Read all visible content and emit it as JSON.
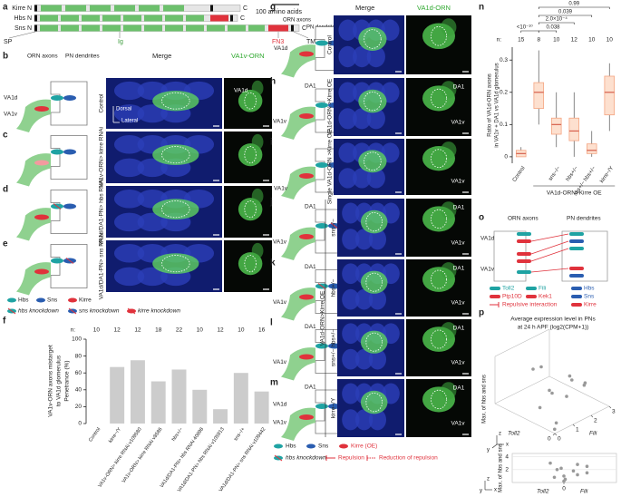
{
  "a": {
    "label": "a",
    "proteins": [
      {
        "name": "Kirre N",
        "end": "C"
      },
      {
        "name": "Hbs N",
        "end": "C"
      },
      {
        "name": "Sns N",
        "end": "C"
      }
    ],
    "scale": "100 amino acids",
    "domains": [
      "SP",
      "Ig",
      "FN3",
      "TM"
    ]
  },
  "b": {
    "label": "b",
    "orn_axons": "ORN axons",
    "pn_dendrites": "PN dendrites",
    "merge": "Merge",
    "channel": "VA1v-ORN",
    "glom_upper": "VA1d",
    "glom_lower": "VA1v",
    "row": "Control",
    "image_label": "VA1d",
    "dorsal": "Dorsal",
    "lateral": "Lateral"
  },
  "c": {
    "label": "c",
    "row": "VA1v-ORN> kirre RNAi"
  },
  "d": {
    "label": "d",
    "row": "VA1d/DA1-PN> hbs RNAi"
  },
  "e": {
    "label": "e",
    "row": "VA1d/DA1-PN> sns RNAi"
  },
  "legend_be": [
    "Hbs",
    "Sns",
    "Kirre",
    "hbs knockdown",
    "sns knockdown",
    "kirre knockdown"
  ],
  "f": {
    "label": "f",
    "type": "bar",
    "ylabel": [
      "VA1v-ORN axons mistarget",
      "to VA1d glomerulus",
      "Penetrance (%)"
    ],
    "n_label": "n:",
    "n": [
      10,
      12,
      12,
      18,
      22,
      10,
      12,
      10,
      16
    ],
    "categories": [
      "Control",
      "kirre−/Y",
      "VA1v-ORN> kirre RNAi v109580",
      "VA1v-ORN> kirre RNAi v8586",
      "hbs+/−",
      "VA1d/DA1-PN> hbs RNAi 40898",
      "VA1d/DA1-PN> hbs RNAi v105913",
      "sns−/+",
      "VA1d/DA1-PN> sns RNAi v109442"
    ],
    "values": [
      0,
      67,
      75,
      50,
      64,
      40,
      17,
      60,
      38
    ],
    "color": "#cccccc",
    "ylim": [
      0,
      100
    ],
    "yticks": [
      0,
      20,
      40,
      60,
      80,
      100
    ]
  },
  "g": {
    "label": "g",
    "orn_axons": "ORN axons",
    "pn_dendrites": "PN dendrites",
    "merge": "Merge",
    "channel": "VA1d-ORN",
    "glom": "VA1d",
    "row": "Control"
  },
  "h": {
    "label": "h",
    "glom_top": "DA1",
    "glom_bottom": "VA1v",
    "row": "VA1d-ORN >Kirre OE",
    "image_top": "DA1",
    "image_bottom": "VA1v"
  },
  "i": {
    "label": "i",
    "glom": "VA1v",
    "row": "Single VA1d-ORN >Kirre OE",
    "image_bottom": "VA1v"
  },
  "j": {
    "label": "j",
    "glom_top": "DA1",
    "glom_bottom": "VA1v",
    "row": "sns−/−",
    "image_top": "DA1",
    "image_bottom": "VA1v"
  },
  "k": {
    "label": "k",
    "glom_top": "DA1",
    "glom_bottom": "VA1v",
    "row": "hbs+/−",
    "image_top": "DA1",
    "image_bottom": "VA1v"
  },
  "l": {
    "label": "l",
    "glom_top": "DA1",
    "glom_bottom": "VA1v",
    "row": "sns+/− hbs+/−",
    "image_top": "DA1",
    "image_bottom": "VA1v"
  },
  "m": {
    "label": "m",
    "glom_top": "DA1",
    "glom_mid": "VA1d",
    "glom_bottom": "VA1v",
    "row": "kirre−/Y",
    "image_top": "DA1",
    "image_bottom": "VA1v"
  },
  "group_label": "VA1d-ORN>Kirre OE",
  "legend_gm": [
    "Hbs",
    "Sns",
    "Kirre (OE)",
    "hbs knockdown",
    "Repulsion",
    "Reduction of repulsion"
  ],
  "n": {
    "label": "n",
    "type": "box",
    "ylabel": [
      "Ratio of VA1d-ORN axons",
      "in VA1v + DA1 vs VA1d glomerulus"
    ],
    "n_label": "n:",
    "n": [
      15,
      8,
      10,
      12,
      10,
      10
    ],
    "categories": [
      "Control",
      null,
      "sns−/−",
      "hbs+/−",
      "sns+/− hbs+/−",
      "kirre−/Y"
    ],
    "group": "VA1d-ORN>Kirre OE",
    "p_values": [
      "<10⁻¹⁰",
      "0.038",
      "2.0×10⁻⁴",
      "0.039",
      "0.99"
    ],
    "boxes": [
      {
        "min": 0,
        "q1": 0,
        "median": 0.01,
        "q3": 0.02,
        "max": 0.03
      },
      {
        "min": 0.1,
        "q1": 0.15,
        "median": 0.2,
        "q3": 0.23,
        "max": 0.33
      },
      {
        "min": 0.03,
        "q1": 0.07,
        "median": 0.1,
        "q3": 0.12,
        "max": 0.2
      },
      {
        "min": 0,
        "q1": 0.05,
        "median": 0.08,
        "q3": 0.12,
        "max": 0.2
      },
      {
        "min": 0,
        "q1": 0.01,
        "median": 0.02,
        "q3": 0.04,
        "max": 0.08
      },
      {
        "min": 0.08,
        "q1": 0.13,
        "median": 0.2,
        "q3": 0.25,
        "max": 0.29
      }
    ],
    "color": "#f4a582",
    "ylim": [
      -0.02,
      0.34
    ],
    "yticks": [
      0,
      0.1,
      0.2,
      0.3
    ]
  },
  "o": {
    "label": "o",
    "orn_axons": "ORN axons",
    "pn_dendrites": "PN dendrites",
    "upper": "VA1d",
    "lower": "VA1v",
    "legend": [
      "Toll2",
      "Fili",
      "Hbs",
      "Sns",
      "Ptp10D",
      "Kek1",
      "Kirre",
      "Repulsive interaction"
    ]
  },
  "p": {
    "label": "p",
    "type": "scatter3d",
    "title": [
      "Average expression level in PNs",
      "at 24 h APF (log2(CPM+1))"
    ],
    "zlabel": "Max. of hbs and sns",
    "xlabel": "Fili",
    "ylabel": "Toll2",
    "fili_ticks": [
      0,
      1,
      2,
      3
    ],
    "toll2_ticks": [
      0
    ],
    "axis_letters": [
      "x",
      "y",
      "z"
    ],
    "toll2": [
      0.2,
      0.5,
      1.0,
      1.5,
      0.3,
      2.0,
      0.8,
      1.2,
      2.5,
      0.1,
      1.8,
      0.6
    ],
    "fili": [
      0.3,
      1.2,
      0.8,
      1.5,
      2.0,
      1.0,
      2.5,
      0.5,
      2.0,
      0.1,
      2.8,
      1.6
    ],
    "values": [
      0.5,
      1.8,
      2.2,
      1.0,
      2.5,
      3.0,
      1.5,
      0.8,
      2.0,
      0.2,
      1.2,
      2.8
    ],
    "lower_yticks": [
      2,
      4
    ],
    "lower_xtick": 0,
    "lower_ylim": [
      0,
      4.5
    ],
    "color": "#999999"
  }
}
